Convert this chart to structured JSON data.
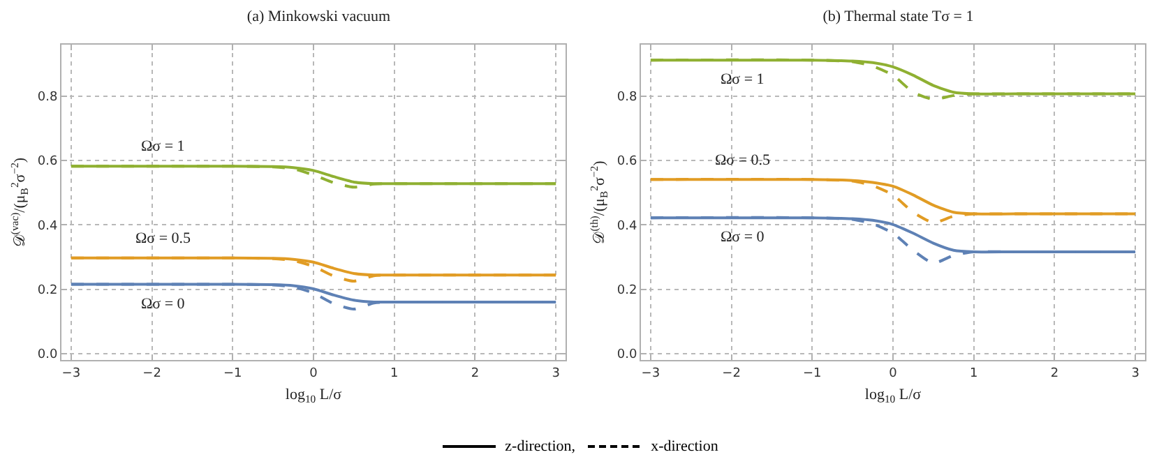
{
  "chart_data": [
    {
      "type": "line",
      "title": "(a) Minkowski vacuum",
      "xlabel": "log$_{10}$ L/σ",
      "ylabel": "𝒟$^{(vac)}$/(μ$_{B}$$^{2}$σ$^{−2}$)",
      "x": [
        -3,
        -1,
        -0.5,
        -0.25,
        0,
        0.25,
        0.5,
        0.75,
        1,
        1.5,
        3
      ],
      "series": [
        {
          "name": "Ωσ = 1",
          "color": "#8fb032",
          "line_style": "solid",
          "values": [
            0.582,
            0.582,
            0.581,
            0.578,
            0.569,
            0.55,
            0.533,
            0.528,
            0.528,
            0.528,
            0.528
          ]
        },
        {
          "color": "#8fb032",
          "line_style": "dashed",
          "values": [
            0.582,
            0.582,
            0.58,
            0.574,
            0.555,
            0.531,
            0.517,
            0.527,
            0.528,
            0.528,
            0.528
          ]
        },
        {
          "name": "Ωσ = 0.5",
          "color": "#e19c24",
          "line_style": "solid",
          "values": [
            0.297,
            0.297,
            0.296,
            0.293,
            0.284,
            0.265,
            0.249,
            0.244,
            0.244,
            0.244,
            0.244
          ]
        },
        {
          "color": "#e19c24",
          "line_style": "dashed",
          "values": [
            0.297,
            0.297,
            0.295,
            0.289,
            0.271,
            0.241,
            0.225,
            0.242,
            0.244,
            0.244,
            0.244
          ]
        },
        {
          "name": "Ωσ = 0",
          "color": "#5e81b5",
          "line_style": "solid",
          "values": [
            0.215,
            0.215,
            0.214,
            0.211,
            0.201,
            0.182,
            0.166,
            0.16,
            0.16,
            0.16,
            0.16
          ]
        },
        {
          "color": "#5e81b5",
          "line_style": "dashed",
          "values": [
            0.215,
            0.215,
            0.213,
            0.207,
            0.188,
            0.155,
            0.138,
            0.157,
            0.16,
            0.16,
            0.16
          ]
        }
      ],
      "xlim": [
        -3.12,
        3.12
      ],
      "ylim": [
        -0.02,
        0.96
      ],
      "xticks": [
        {
          "value": -3,
          "label": "−3"
        },
        {
          "value": -2,
          "label": "−2"
        },
        {
          "value": -1,
          "label": "−1"
        },
        0,
        1,
        2,
        3
      ],
      "yticks": [
        {
          "value": 0,
          "label": "0.0"
        },
        0.2,
        0.4,
        0.6,
        0.8
      ],
      "grid": true
    },
    {
      "type": "line",
      "title": "(b) Thermal state Tσ = 1",
      "xlabel": "log$_{10}$ L/σ",
      "ylabel": "𝒟$^{(th)}$/(μ$_{B}$$^{2}$σ$^{−2}$)",
      "x": [
        -3,
        -1,
        -0.5,
        -0.25,
        0,
        0.25,
        0.5,
        0.75,
        1,
        1.5,
        3
      ],
      "series": [
        {
          "name": "Ωσ = 1",
          "color": "#8fb032",
          "line_style": "solid",
          "values": [
            0.912,
            0.912,
            0.909,
            0.904,
            0.891,
            0.865,
            0.833,
            0.812,
            0.807,
            0.807,
            0.807
          ]
        },
        {
          "color": "#8fb032",
          "line_style": "dashed",
          "values": [
            0.912,
            0.912,
            0.907,
            0.893,
            0.865,
            0.812,
            0.79,
            0.802,
            0.807,
            0.807,
            0.807
          ]
        },
        {
          "name": "Ωσ = 0.5",
          "color": "#e19c24",
          "line_style": "solid",
          "values": [
            0.541,
            0.541,
            0.538,
            0.532,
            0.52,
            0.493,
            0.461,
            0.439,
            0.434,
            0.434,
            0.434
          ]
        },
        {
          "color": "#e19c24",
          "line_style": "dashed",
          "values": [
            0.541,
            0.541,
            0.536,
            0.522,
            0.493,
            0.439,
            0.407,
            0.427,
            0.434,
            0.434,
            0.434
          ]
        },
        {
          "name": "Ωσ = 0",
          "color": "#5e81b5",
          "line_style": "solid",
          "values": [
            0.422,
            0.422,
            0.419,
            0.414,
            0.401,
            0.374,
            0.343,
            0.321,
            0.316,
            0.316,
            0.316
          ]
        },
        {
          "color": "#5e81b5",
          "line_style": "dashed",
          "values": [
            0.422,
            0.422,
            0.417,
            0.403,
            0.374,
            0.321,
            0.281,
            0.305,
            0.316,
            0.316,
            0.316
          ]
        }
      ],
      "xlim": [
        -3.12,
        3.12
      ],
      "ylim": [
        -0.02,
        0.96
      ],
      "xticks": [
        {
          "value": -3,
          "label": "−3"
        },
        {
          "value": -2,
          "label": "−2"
        },
        {
          "value": -1,
          "label": "−1"
        },
        0,
        1,
        2,
        3
      ],
      "yticks": [
        {
          "value": 0,
          "label": "0.0"
        },
        0.2,
        0.4,
        0.6,
        0.8
      ],
      "grid": true
    },
    {
      "type": "other",
      "annotations": [
        "z-direction,",
        "x-direction"
      ]
    }
  ]
}
